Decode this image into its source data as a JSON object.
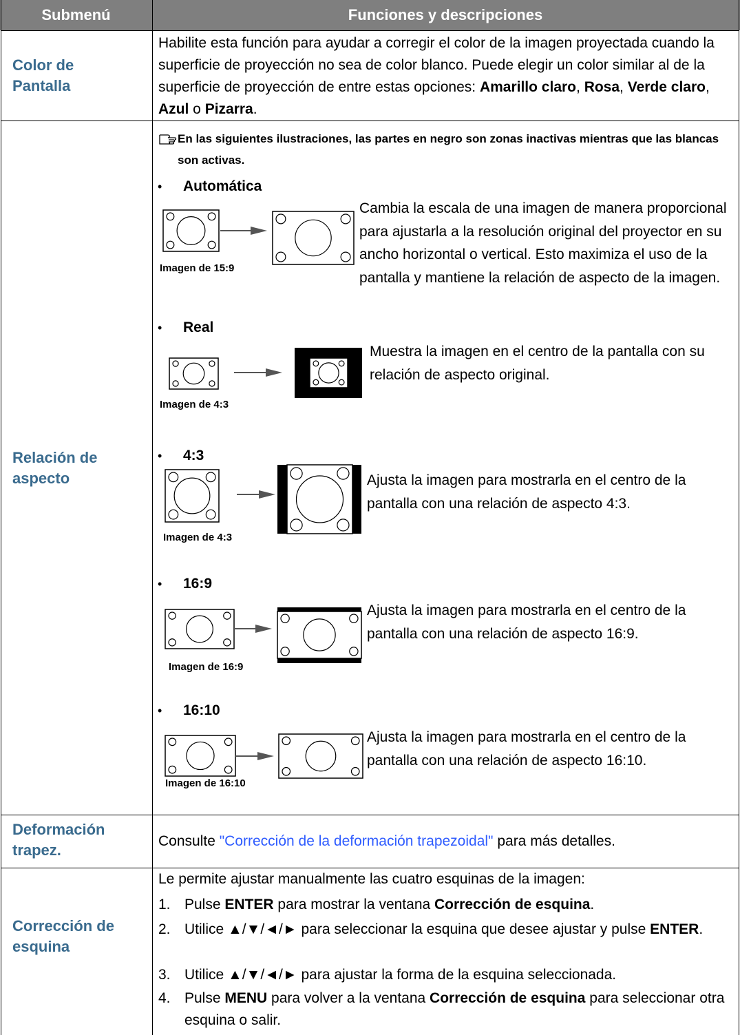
{
  "header": {
    "submenu": "Submenú",
    "functions": "Funciones y descripciones"
  },
  "rows": [
    {
      "label": "Color de\nPantalla",
      "description": [
        {
          "text": "Habilite esta función para ayudar a corregir el color de la imagen proyectada cuando la superficie de proyección no sea de color blanco. Puede elegir un color similar al de la superficie de proyección de entre estas opciones: "
        },
        {
          "text": "Amarillo claro",
          "style": "bold"
        },
        {
          "text": ", "
        },
        {
          "text": "Rosa",
          "style": "bold"
        },
        {
          "text": ", "
        },
        {
          "text": "Verde claro",
          "style": "bold"
        },
        {
          "text": ", "
        },
        {
          "text": "Azul",
          "style": "bold"
        },
        {
          "text": " o "
        },
        {
          "text": "Pizarra",
          "style": "bold"
        },
        {
          "text": "."
        }
      ]
    },
    {
      "label": "Relación de\naspecto",
      "note": "En las siguientes ilustraciones, las partes en negro son zonas inactivas mientras que las blancas son activas.",
      "modes": [
        {
          "name": "Automática",
          "caption": "Imagen de 15:9",
          "description": "Cambia la escala de una imagen de manera proporcional para ajustarla a la resolución original del proyector en su ancho horizontal o vertical. Esto maximiza el uso de la pantalla y mantiene la relación de aspecto de la imagen."
        },
        {
          "name": "Real",
          "caption": "Imagen de 4:3",
          "description": "Muestra la imagen en el centro de la pantalla con su relación de aspecto original."
        },
        {
          "name": "4:3",
          "caption": "Imagen de 4:3",
          "description": "Ajusta la imagen para mostrarla en el centro de la pantalla con una relación de aspecto 4:3."
        },
        {
          "name": "16:9",
          "caption": "Imagen de 16:9",
          "description": "Ajusta la imagen para mostrarla en el centro de la pantalla con una relación de aspecto 16:9."
        },
        {
          "name": "16:10",
          "caption": "Imagen de 16:10",
          "description": "Ajusta la imagen para mostrarla en el centro de la pantalla con una relación de aspecto 16:10."
        }
      ]
    },
    {
      "label": "Deformación\ntrapez.",
      "description": [
        {
          "text": "Consulte "
        },
        {
          "text": "\"Corrección de la deformación trapezoidal\"",
          "style": "link"
        },
        {
          "text": " para más detalles."
        }
      ]
    },
    {
      "label": "Corrección de\nesquina",
      "intro": "Le permite ajustar manualmente las cuatro esquinas de la imagen:",
      "steps": [
        {
          "number": "1.",
          "content": [
            {
              "text": "Pulse "
            },
            {
              "text": "ENTER",
              "style": "bold"
            },
            {
              "text": " para mostrar la ventana "
            },
            {
              "text": "Corrección de esquina",
              "style": "bold"
            },
            {
              "text": "."
            }
          ]
        },
        {
          "number": "2.",
          "content": [
            {
              "text": "Utilice ▲/▼/◄/► para seleccionar la esquina que desee ajustar y pulse "
            },
            {
              "text": "ENTER",
              "style": "bold"
            },
            {
              "text": "."
            }
          ]
        },
        {
          "number": "3.",
          "content": [
            {
              "text": "Utilice ▲/▼/◄/► para ajustar la forma de la esquina seleccionada."
            }
          ]
        },
        {
          "number": "4.",
          "content": [
            {
              "text": "Pulse "
            },
            {
              "text": "MENU",
              "style": "bold"
            },
            {
              "text": " para volver a la ventana "
            },
            {
              "text": "Corrección de esquina",
              "style": "bold"
            },
            {
              "text": " para seleccionar otra esquina o salir."
            }
          ]
        }
      ]
    }
  ]
}
